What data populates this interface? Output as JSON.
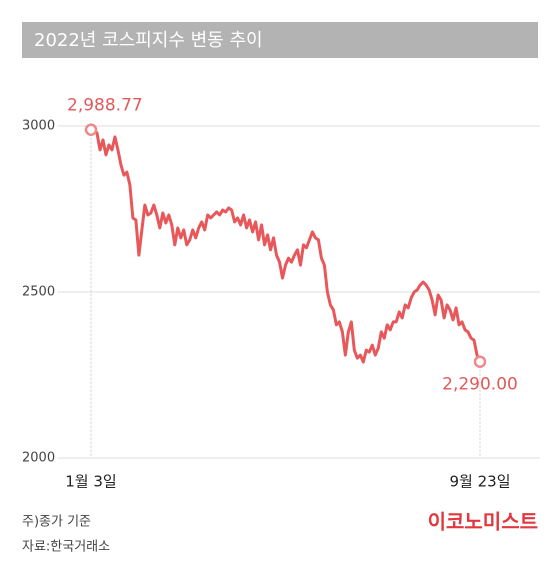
{
  "chart_data": {
    "type": "line",
    "title": "2022년 코스피지수 변동 추이",
    "categories": [
      "1월 3일",
      null,
      null,
      null,
      null,
      null,
      null,
      null,
      null,
      null,
      null,
      null,
      null,
      null,
      null,
      null,
      null,
      null,
      null,
      null,
      null,
      null,
      null,
      null,
      null,
      null,
      null,
      null,
      null,
      null,
      null,
      null,
      null,
      null,
      null,
      null,
      null,
      null,
      null,
      null,
      null,
      null,
      null,
      null,
      null,
      null,
      null,
      null,
      null,
      null,
      null,
      null,
      null,
      null,
      null,
      null,
      null,
      null,
      null,
      null,
      null,
      null,
      null,
      null,
      null,
      null,
      null,
      null,
      null,
      null,
      null,
      null,
      null,
      null,
      null,
      null,
      null,
      null,
      null,
      null,
      null,
      null,
      null,
      null,
      null,
      null,
      null,
      null,
      null,
      null,
      null,
      null,
      null,
      null,
      null,
      null,
      null,
      null,
      null,
      null,
      null,
      null,
      null,
      null,
      null,
      null,
      null,
      null,
      null,
      null,
      null,
      null,
      null,
      null,
      null,
      null,
      null,
      null,
      null,
      null,
      null,
      null,
      null,
      null,
      null,
      null,
      null,
      null,
      null,
      null,
      "9월 23일"
    ],
    "values": [
      2988.77,
      2988,
      2979,
      2928,
      2958,
      2913,
      2943,
      2928,
      2967,
      2928,
      2883,
      2852,
      2861,
      2822,
      2723,
      2717,
      2611,
      2687,
      2762,
      2732,
      2738,
      2762,
      2732,
      2693,
      2738,
      2708,
      2732,
      2702,
      2642,
      2693,
      2663,
      2687,
      2642,
      2657,
      2687,
      2663,
      2693,
      2711,
      2687,
      2732,
      2723,
      2732,
      2741,
      2732,
      2747,
      2741,
      2753,
      2747,
      2711,
      2723,
      2702,
      2732,
      2693,
      2717,
      2681,
      2711,
      2657,
      2702,
      2642,
      2672,
      2627,
      2663,
      2611,
      2590,
      2542,
      2581,
      2602,
      2590,
      2611,
      2627,
      2581,
      2642,
      2633,
      2657,
      2681,
      2663,
      2657,
      2602,
      2581,
      2500,
      2461,
      2446,
      2401,
      2410,
      2380,
      2310,
      2380,
      2410,
      2325,
      2301,
      2310,
      2289,
      2325,
      2319,
      2340,
      2310,
      2331,
      2380,
      2361,
      2401,
      2386,
      2410,
      2410,
      2440,
      2422,
      2461,
      2452,
      2482,
      2500,
      2506,
      2521,
      2530,
      2521,
      2506,
      2476,
      2431,
      2491,
      2476,
      2422,
      2461,
      2446,
      2416,
      2452,
      2401,
      2410,
      2386,
      2380,
      2361,
      2355,
      2310,
      2290.0
    ],
    "value_labels": [
      "2,988.77",
      null,
      null,
      null,
      null,
      null,
      null,
      null,
      null,
      null,
      null,
      null,
      null,
      null,
      null,
      null,
      null,
      null,
      null,
      null,
      null,
      null,
      null,
      null,
      null,
      null,
      null,
      null,
      null,
      null,
      null,
      null,
      null,
      null,
      null,
      null,
      null,
      null,
      null,
      null,
      null,
      null,
      null,
      null,
      null,
      null,
      null,
      null,
      null,
      null,
      null,
      null,
      null,
      null,
      null,
      null,
      null,
      null,
      null,
      null,
      null,
      null,
      null,
      null,
      null,
      null,
      null,
      null,
      null,
      null,
      null,
      null,
      null,
      null,
      null,
      null,
      null,
      null,
      null,
      null,
      null,
      null,
      null,
      null,
      null,
      null,
      null,
      null,
      null,
      null,
      null,
      null,
      null,
      null,
      null,
      null,
      null,
      null,
      null,
      null,
      null,
      null,
      null,
      null,
      null,
      null,
      null,
      null,
      null,
      null,
      null,
      null,
      null,
      null,
      null,
      null,
      null,
      null,
      null,
      null,
      null,
      null,
      null,
      null,
      null,
      null,
      null,
      null,
      null,
      null,
      "2,290.00"
    ],
    "color": "#e8585a",
    "ylim": [
      2000,
      3000
    ],
    "yticks": [
      2000,
      2500,
      3000
    ],
    "grid": true
  },
  "footer": {
    "note": "주)종가 기준",
    "source": "자료:한국거래소",
    "logo": "이코노미스트"
  }
}
